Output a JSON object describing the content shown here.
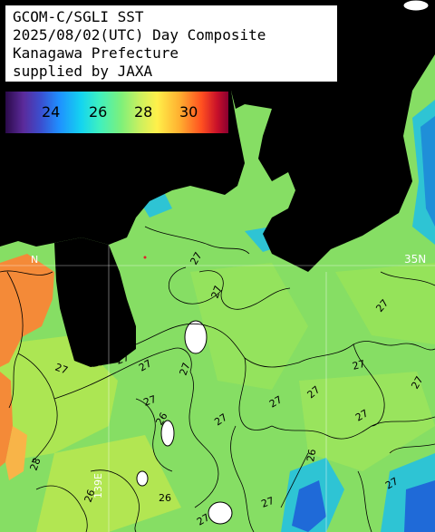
{
  "info": {
    "line1": "GCOM-C/SGLI SST",
    "line2": "2025/08/02(UTC) Day Composite",
    "line3": "Kanagawa Prefecture",
    "line4": "supplied by JAXA"
  },
  "legend": {
    "labels": [
      "24",
      "26",
      "28",
      "30"
    ],
    "colormap": [
      "#2a0a4a",
      "#3a4fd0",
      "#14d4f0",
      "#7ef07a",
      "#fff04a",
      "#ff5020",
      "#8a0030"
    ]
  },
  "graticule": {
    "lat_label_left": "N",
    "lat_label_right": "35N",
    "lon_label_bottom": "139E"
  },
  "contours": {
    "labels": [
      "27",
      "27",
      "27",
      "27",
      "27",
      "27",
      "27",
      "27",
      "27",
      "27",
      "27",
      "27",
      "27",
      "26",
      "26",
      "28",
      "26",
      "27",
      "27",
      "26",
      "27",
      "27",
      "27"
    ]
  },
  "colors": {
    "land": "#ffffff",
    "sea_base": "#86de64",
    "warm_water": "#f48a38",
    "cool_water": "#2ec4d4"
  }
}
